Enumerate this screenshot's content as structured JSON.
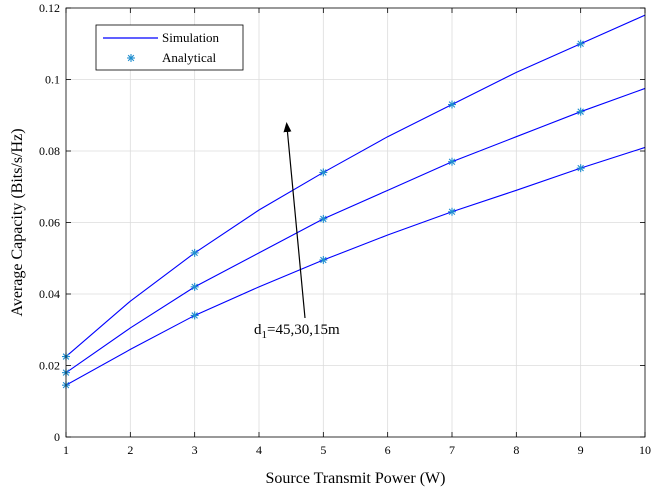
{
  "chart_data": {
    "type": "line",
    "title": "",
    "xlabel": "Source Transmit Power (W)",
    "ylabel": "Average Capacity (Bits/s/Hz)",
    "xlim": [
      1,
      10
    ],
    "ylim": [
      0,
      0.12
    ],
    "xticks": [
      1,
      2,
      3,
      4,
      5,
      6,
      7,
      8,
      9,
      10
    ],
    "yticks": [
      0,
      0.02,
      0.04,
      0.06,
      0.08,
      0.1,
      0.12
    ],
    "xtick_labels": [
      "1",
      "2",
      "3",
      "4",
      "5",
      "6",
      "7",
      "8",
      "9",
      "10"
    ],
    "ytick_labels": [
      "0",
      "0.02",
      "0.04",
      "0.06",
      "0.08",
      "0.1",
      "0.12"
    ],
    "grid": true,
    "legend_position": "top-left",
    "legend": {
      "simulation": "Simulation",
      "analytical": "Analytical"
    },
    "annotation": {
      "text_prefix": "d",
      "text_subscript": "1",
      "text_suffix": "=45,30,15m",
      "arrow": "points from the lowest curve toward the highest curve"
    },
    "colors": {
      "simulation": "#0000ff",
      "analytical": "#1f8ecf"
    },
    "series": [
      {
        "curve": "top",
        "simulation": {
          "x": [
            1,
            2,
            3,
            4,
            5,
            6,
            7,
            8,
            9,
            10
          ],
          "y": [
            0.0225,
            0.038,
            0.0515,
            0.0635,
            0.074,
            0.084,
            0.093,
            0.102,
            0.11,
            0.118
          ]
        },
        "analytical": {
          "x": [
            1,
            3,
            5,
            7,
            9
          ],
          "y": [
            0.0225,
            0.0515,
            0.074,
            0.093,
            0.11
          ]
        }
      },
      {
        "curve": "middle",
        "simulation": {
          "x": [
            1,
            2,
            3,
            4,
            5,
            6,
            7,
            8,
            9,
            10
          ],
          "y": [
            0.018,
            0.0305,
            0.042,
            0.0515,
            0.061,
            0.069,
            0.077,
            0.084,
            0.091,
            0.0975
          ]
        },
        "analytical": {
          "x": [
            1,
            3,
            5,
            7,
            9
          ],
          "y": [
            0.018,
            0.042,
            0.061,
            0.077,
            0.091
          ]
        }
      },
      {
        "curve": "bottom",
        "simulation": {
          "x": [
            1,
            2,
            3,
            4,
            5,
            6,
            7,
            8,
            9,
            10
          ],
          "y": [
            0.0145,
            0.0245,
            0.034,
            0.042,
            0.0495,
            0.0565,
            0.063,
            0.069,
            0.0752,
            0.081
          ]
        },
        "analytical": {
          "x": [
            1,
            3,
            5,
            7,
            9
          ],
          "y": [
            0.0145,
            0.034,
            0.0495,
            0.063,
            0.0752
          ]
        }
      }
    ]
  }
}
